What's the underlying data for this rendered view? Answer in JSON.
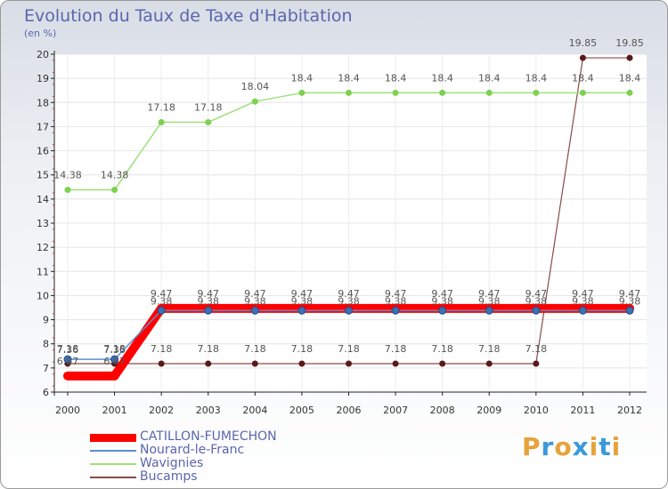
{
  "chart_data": {
    "type": "line",
    "title": "Evolution du Taux de Taxe d'Habitation",
    "ylabel": "(en %)",
    "xlabel": "",
    "x": [
      "2000",
      "2001",
      "2002",
      "2003",
      "2004",
      "2005",
      "2006",
      "2007",
      "2008",
      "2009",
      "2010",
      "2011",
      "2012"
    ],
    "ylim": [
      6,
      20
    ],
    "yticks": [
      6,
      7,
      8,
      9,
      10,
      11,
      12,
      13,
      14,
      15,
      16,
      17,
      18,
      19,
      20
    ],
    "series": [
      {
        "name": "CATILLON-FUMECHON",
        "color": "#ff0000",
        "marker": "#ff0000",
        "values": [
          6.67,
          6.67,
          9.47,
          9.47,
          9.47,
          9.47,
          9.47,
          9.47,
          9.47,
          9.47,
          9.47,
          9.47,
          9.47
        ],
        "labels": [
          "6.67",
          "6.67",
          "9.47",
          "9.47",
          "9.47",
          "9.47",
          "9.47",
          "9.47",
          "9.47",
          "9.47",
          "9.47",
          "9.47",
          "9.47"
        ]
      },
      {
        "name": "Nourard-le-Franc",
        "color": "#5b8fd0",
        "marker": "#3e6fb0",
        "values": [
          7.36,
          7.36,
          9.38,
          9.38,
          9.38,
          9.38,
          9.38,
          9.38,
          9.38,
          9.38,
          9.38,
          9.38,
          9.38
        ],
        "labels": [
          "7.36",
          "7.36",
          "9.38",
          "9.38",
          "9.38",
          "9.38",
          "9.38",
          "9.38",
          "9.38",
          "9.38",
          "9.38",
          "9.38",
          "9.38"
        ]
      },
      {
        "name": "Wavignies",
        "color": "#9ee07a",
        "marker": "#7ed04f",
        "values": [
          14.38,
          14.38,
          17.18,
          17.18,
          18.04,
          18.4,
          18.4,
          18.4,
          18.4,
          18.4,
          18.4,
          18.4,
          18.4
        ],
        "labels": [
          "14.38",
          "14.38",
          "17.18",
          "17.18",
          "18.04",
          "18.4",
          "18.4",
          "18.4",
          "18.4",
          "18.4",
          "18.4",
          "18.4",
          "18.4"
        ]
      },
      {
        "name": "Bucamps",
        "color": "#8a4a4a",
        "marker": "#5a1a1a",
        "values": [
          7.18,
          7.18,
          7.18,
          7.18,
          7.18,
          7.18,
          7.18,
          7.18,
          7.18,
          7.18,
          7.18,
          19.85,
          19.85
        ],
        "labels": [
          "7.18",
          "7.18",
          "7.18",
          "7.18",
          "7.18",
          "7.18",
          "7.18",
          "7.18",
          "7.18",
          "7.18",
          "7.18",
          "19.85",
          "19.85"
        ]
      }
    ]
  },
  "brand": {
    "text": "Proxiti",
    "colors": [
      "#e8a23a",
      "#3a9ad9",
      "#e8a23a",
      "#3a9ad9",
      "#e8a23a",
      "#3a9ad9",
      "#e8a23a"
    ]
  }
}
